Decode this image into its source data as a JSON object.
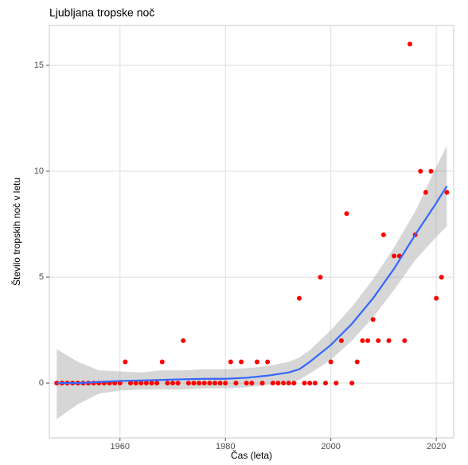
{
  "chart_data": {
    "type": "scatter",
    "title": "Ljubljana tropske noč",
    "x_label": "Čas (leta)",
    "y_label": "Število tropskih noč v letu",
    "x": [
      1948,
      1949,
      1950,
      1951,
      1952,
      1953,
      1954,
      1955,
      1956,
      1957,
      1958,
      1959,
      1960,
      1961,
      1962,
      1963,
      1964,
      1965,
      1966,
      1967,
      1968,
      1969,
      1970,
      1971,
      1972,
      1973,
      1974,
      1975,
      1976,
      1977,
      1978,
      1979,
      1980,
      1981,
      1982,
      1983,
      1984,
      1985,
      1986,
      1987,
      1988,
      1989,
      1990,
      1991,
      1992,
      1993,
      1994,
      1995,
      1996,
      1997,
      1998,
      1999,
      2000,
      2001,
      2002,
      2003,
      2004,
      2005,
      2006,
      2007,
      2008,
      2009,
      2010,
      2011,
      2012,
      2013,
      2014,
      2015,
      2016,
      2017,
      2018,
      2019,
      2020,
      2021,
      2022
    ],
    "values": [
      0,
      0,
      0,
      0,
      0,
      0,
      0,
      0,
      0,
      0,
      0,
      0,
      0,
      1,
      0,
      0,
      0,
      0,
      0,
      0,
      1,
      0,
      0,
      0,
      2,
      0,
      0,
      0,
      0,
      0,
      0,
      0,
      0,
      1,
      0,
      1,
      0,
      0,
      1,
      0,
      1,
      0,
      0,
      0,
      0,
      0,
      4,
      0,
      0,
      0,
      5,
      0,
      1,
      0,
      2,
      8,
      0,
      1,
      2,
      2,
      3,
      2,
      7,
      2,
      6,
      6,
      2,
      16,
      7,
      10,
      9,
      10,
      4,
      5,
      9
    ],
    "color": "#ff0000",
    "smooth": {
      "x": [
        1948,
        1952,
        1956,
        1960,
        1964,
        1968,
        1972,
        1976,
        1980,
        1984,
        1988,
        1992,
        1994,
        1996,
        2000,
        2004,
        2008,
        2012,
        2016,
        2020,
        2022
      ],
      "values": [
        0,
        0,
        0.05,
        0.1,
        0.12,
        0.15,
        0.18,
        0.2,
        0.2,
        0.25,
        0.35,
        0.5,
        0.65,
        1.0,
        1.8,
        2.8,
        4.0,
        5.4,
        7.0,
        8.5,
        9.3
      ],
      "lower": [
        -1.7,
        -1.0,
        -0.5,
        -0.35,
        -0.3,
        -0.3,
        -0.3,
        -0.25,
        -0.25,
        -0.2,
        -0.1,
        0.05,
        0.15,
        0.45,
        1.1,
        2.0,
        3.1,
        4.4,
        5.8,
        6.9,
        7.4
      ],
      "upper": [
        1.6,
        1.0,
        0.6,
        0.55,
        0.5,
        0.6,
        0.6,
        0.65,
        0.65,
        0.7,
        0.8,
        1.0,
        1.2,
        1.55,
        2.5,
        3.6,
        4.9,
        6.4,
        8.1,
        10.2,
        11.2
      ],
      "color": "#3366ff",
      "band_color": "#999999"
    },
    "xlim": [
      1946.6,
      2023.3
    ],
    "xticks": [
      1960,
      1980,
      2000,
      2020
    ],
    "ylim": [
      -2.59,
      16.88
    ],
    "yticks": [
      0,
      5,
      10,
      15
    ],
    "grid": true
  }
}
